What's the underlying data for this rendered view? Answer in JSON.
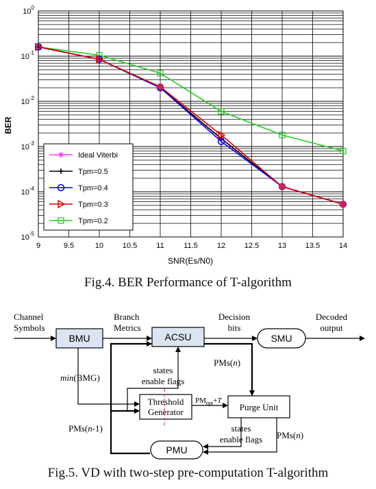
{
  "chart_data": {
    "type": "line",
    "xlabel": "SNR(Es/N0)",
    "ylabel": "BER",
    "xlim": [
      9,
      14
    ],
    "ylim": [
      1e-05,
      1
    ],
    "yscale": "log",
    "grid": true,
    "legend_position": "bottom-left",
    "x_ticks": [
      "9",
      "9.5",
      "10",
      "10.5",
      "11",
      "11.5",
      "12",
      "12.5",
      "13",
      "13.5",
      "14"
    ],
    "y_ticks": [
      {
        "base": "10",
        "exp": "0"
      },
      {
        "base": "10",
        "exp": "-1"
      },
      {
        "base": "10",
        "exp": "-2"
      },
      {
        "base": "10",
        "exp": "-3"
      },
      {
        "base": "10",
        "exp": "-4"
      },
      {
        "base": "10",
        "exp": "-5"
      }
    ],
    "x": [
      9,
      10,
      11,
      12,
      13,
      14
    ],
    "series": [
      {
        "name": "Ideal Viterbi",
        "color": "#ff33ff",
        "marker": "star",
        "values": [
          0.16,
          0.085,
          0.02,
          0.0015,
          0.00013,
          5.3e-05
        ]
      },
      {
        "name": "Tpm=0.5",
        "color": "#000000",
        "marker": "plus",
        "values": [
          0.16,
          0.085,
          0.02,
          0.0015,
          0.00013,
          5.3e-05
        ]
      },
      {
        "name": "Tpm=0.4",
        "color": "#0000ee",
        "marker": "circle",
        "values": [
          0.16,
          0.085,
          0.02,
          0.0013,
          0.00013,
          5.3e-05
        ]
      },
      {
        "name": "Tpm=0.3",
        "color": "#dd0000",
        "marker": "triangle",
        "values": [
          0.16,
          0.085,
          0.021,
          0.0018,
          0.00013,
          5.3e-05
        ]
      },
      {
        "name": "Tpm=0.2",
        "color": "#22cc22",
        "marker": "square",
        "values": [
          0.16,
          0.105,
          0.042,
          0.006,
          0.0018,
          0.0008
        ]
      }
    ]
  },
  "captions": {
    "fig4": "Fig.4. BER Performance of T-algorithm",
    "fig5": "Fig.5. VD with two-step pre-computation T-algorithm"
  },
  "diagram": {
    "blocks": {
      "bmu": "BMU",
      "acsu": "ACSU",
      "smu": "SMU",
      "threshold_line1": "Threshold",
      "threshold_line2": "Generator",
      "purge": "Purge Unit",
      "pmu": "PMU"
    },
    "labels": {
      "channel_line1": "Channel",
      "channel_line2": "Symbols",
      "branch_line1": "Branch",
      "branch_line2": "Metrics",
      "decision_line1": "Decision",
      "decision_line2": "bits",
      "decoded_line1": "Decoded",
      "decoded_line2": "output",
      "min_italic": "min",
      "min_rest": "(BMG)",
      "states1_line1": "states",
      "states1_line2": "enable flags",
      "pms_n_prefix": "PMs(",
      "pms_n_var": "n",
      "pms_suffix": ")",
      "pmopt_prefix": "PM",
      "pmopt_sub": "opt",
      "pmopt_suffix": "+",
      "pmopt_t": "T",
      "pms_n1_prefix": "PMs(",
      "pms_n1_var": "n",
      "pms_n1_suffix": "-1)",
      "states2_line1": "states",
      "states2_line2": "enable flags"
    }
  }
}
